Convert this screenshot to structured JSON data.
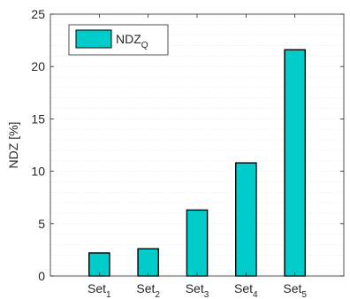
{
  "chart_data": {
    "type": "bar",
    "categories": [
      {
        "base": "Set",
        "sub": "1"
      },
      {
        "base": "Set",
        "sub": "2"
      },
      {
        "base": "Set",
        "sub": "3"
      },
      {
        "base": "Set",
        "sub": "4"
      },
      {
        "base": "Set",
        "sub": "5"
      }
    ],
    "series": [
      {
        "name": "NDZ",
        "name_sub": "Q",
        "values": [
          2.2,
          2.6,
          6.3,
          10.8,
          21.6
        ]
      }
    ],
    "title": "",
    "xlabel": "",
    "ylabel": "NDZ [%]",
    "ylim": [
      0,
      25
    ],
    "yticks": [
      "0",
      "5",
      "10",
      "15",
      "20",
      "25"
    ],
    "grid": "horizontal-minor-dotted",
    "legend_position": "top-left",
    "colors": {
      "bar_fill": "#00CCCC",
      "bar_edge": "#000000",
      "axis": "#262626",
      "grid": "#dcdcdc"
    }
  }
}
